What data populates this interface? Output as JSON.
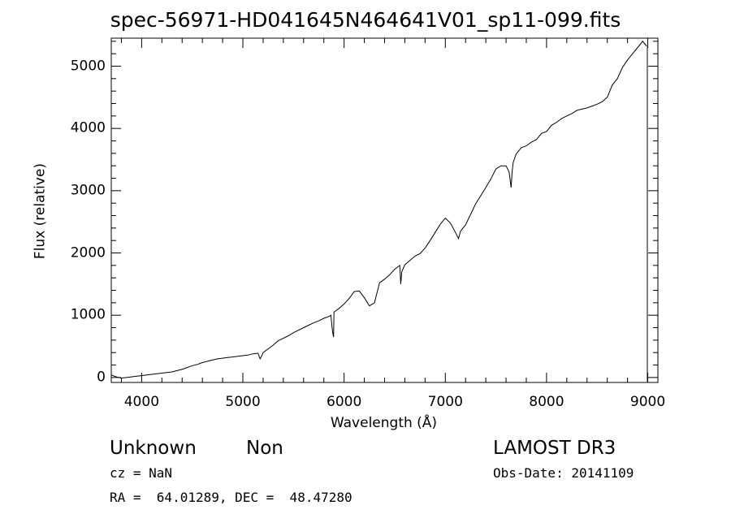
{
  "chart_data": {
    "type": "line",
    "title": "spec-56971-HD041645N464641V01_sp11-099.fits",
    "xlabel": "Wavelength (Å)",
    "ylabel": "Flux (relative)",
    "xlim": [
      3700,
      9100
    ],
    "ylim": [
      -80,
      5450
    ],
    "xticks": [
      4000,
      5000,
      6000,
      7000,
      8000,
      9000
    ],
    "yticks": [
      0,
      1000,
      2000,
      3000,
      4000,
      5000
    ],
    "grid": false,
    "line_color": "#000000",
    "series": [
      {
        "x": [
          3700,
          3750,
          3800,
          3850,
          3900,
          3950,
          4000,
          4050,
          4100,
          4150,
          4200,
          4250,
          4300,
          4350,
          4400,
          4450,
          4500,
          4550,
          4600,
          4650,
          4700,
          4750,
          4800,
          4850,
          4900,
          4950,
          5000,
          5050,
          5100,
          5150,
          5170,
          5180,
          5190,
          5200,
          5250,
          5300,
          5350,
          5400,
          5450,
          5500,
          5550,
          5600,
          5650,
          5700,
          5750,
          5800,
          5850,
          5870,
          5880,
          5890,
          5896,
          5900,
          5950,
          6000,
          6050,
          6100,
          6150,
          6200,
          6250,
          6300,
          6350,
          6400,
          6450,
          6500,
          6550,
          6560,
          6570,
          6600,
          6650,
          6700,
          6750,
          6800,
          6850,
          6900,
          6950,
          7000,
          7050,
          7100,
          7130,
          7150,
          7200,
          7250,
          7300,
          7350,
          7400,
          7450,
          7500,
          7550,
          7600,
          7630,
          7650,
          7660,
          7670,
          7700,
          7750,
          7800,
          7850,
          7900,
          7950,
          8000,
          8050,
          8100,
          8150,
          8200,
          8250,
          8300,
          8350,
          8400,
          8450,
          8500,
          8550,
          8600,
          8650,
          8700,
          8750,
          8800,
          8850,
          8900,
          8950,
          8990
        ],
        "y": [
          40,
          10,
          -10,
          0,
          10,
          20,
          30,
          40,
          50,
          60,
          70,
          80,
          90,
          110,
          130,
          160,
          190,
          210,
          240,
          260,
          280,
          300,
          310,
          320,
          330,
          340,
          350,
          360,
          380,
          390,
          300,
          330,
          360,
          400,
          460,
          520,
          590,
          630,
          670,
          720,
          760,
          800,
          840,
          880,
          910,
          950,
          980,
          1000,
          820,
          700,
          650,
          1050,
          1110,
          1180,
          1270,
          1380,
          1390,
          1280,
          1150,
          1200,
          1520,
          1580,
          1650,
          1740,
          1800,
          1500,
          1700,
          1810,
          1880,
          1950,
          1990,
          2080,
          2200,
          2330,
          2460,
          2560,
          2480,
          2330,
          2230,
          2350,
          2450,
          2620,
          2790,
          2920,
          3050,
          3190,
          3350,
          3400,
          3400,
          3300,
          3050,
          3300,
          3450,
          3590,
          3690,
          3720,
          3780,
          3820,
          3920,
          3950,
          4050,
          4100,
          4160,
          4200,
          4240,
          4290,
          4310,
          4330,
          4360,
          4390,
          4430,
          4500,
          4700,
          4800,
          4980,
          5100,
          5200,
          5300,
          5400,
          5320
        ]
      }
    ]
  },
  "footer": {
    "object_class": "Unknown",
    "subclass": "Non",
    "survey": "LAMOST DR3",
    "cz": "cz = NaN",
    "obs_date": "Obs-Date: 20141109",
    "coords": "RA =  64.01289, DEC =  48.47280"
  }
}
